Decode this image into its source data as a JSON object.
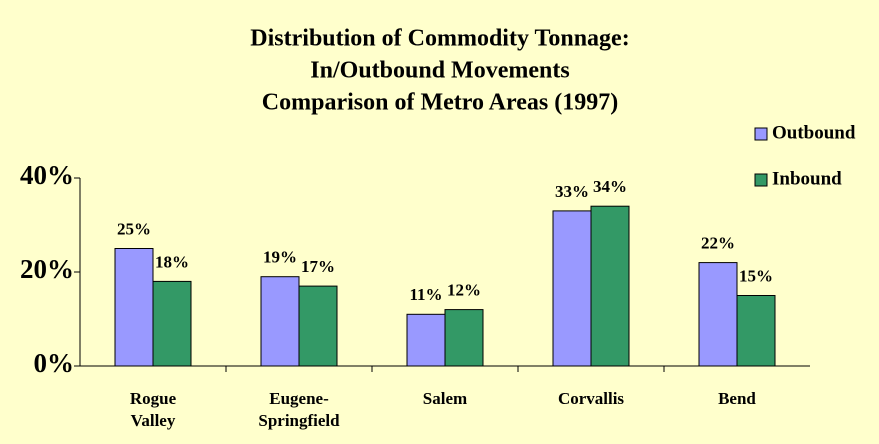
{
  "chart_data": {
    "type": "bar",
    "title": [
      "Distribution of Commodity Tonnage:",
      "In/Outbound Movements",
      "Comparison of Metro Areas (1997)"
    ],
    "categories": [
      [
        "Rogue",
        "Valley"
      ],
      [
        "Eugene-",
        "Springfield"
      ],
      [
        "Salem"
      ],
      [
        "Corvallis"
      ],
      [
        "Bend"
      ]
    ],
    "series": [
      {
        "name": "Outbound",
        "color": "#9999ff",
        "values": [
          25,
          19,
          11,
          33,
          22
        ],
        "value_labels": [
          "25%",
          "19%",
          "11%",
          "33%",
          "22%"
        ]
      },
      {
        "name": "Inbound",
        "color": "#339966",
        "values": [
          18,
          17,
          12,
          34,
          15
        ],
        "value_labels": [
          "18%",
          "17%",
          "12%",
          "34%",
          "15%"
        ]
      }
    ],
    "ylim": [
      0,
      40
    ],
    "yticks": [
      {
        "value": 0,
        "label": "0%"
      },
      {
        "value": 20,
        "label": "20%"
      },
      {
        "value": 40,
        "label": "40%"
      }
    ],
    "legend": "right"
  }
}
